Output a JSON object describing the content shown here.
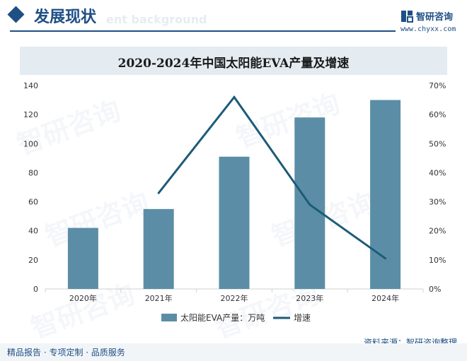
{
  "header": {
    "section_title": "发展现状",
    "ghost_text": "ent background",
    "brand_name": "智研咨询",
    "brand_url": "www.chyxx.com",
    "watermark": "智研咨询"
  },
  "footer": {
    "left": "精品报告 · 专项定制 · 品质服务",
    "source": "资料来源：智研咨询整理"
  },
  "colors": {
    "primary": "#1e4f85",
    "bar": "#5b8ea6",
    "line": "#1c5b78",
    "title_bg": "#e4ebf1"
  },
  "chart_data": {
    "type": "bar",
    "title": "2020-2024年中国太阳能EVA产量及增速",
    "categories": [
      "2020年",
      "2021年",
      "2022年",
      "2023年",
      "2024年"
    ],
    "series": [
      {
        "name": "太阳能EVA产量：万吨",
        "type": "bar",
        "axis": "left",
        "values": [
          42,
          55,
          91,
          118,
          130
        ]
      },
      {
        "name": "增速",
        "type": "line",
        "axis": "right",
        "values": [
          null,
          33,
          66,
          29,
          10.5
        ]
      }
    ],
    "ylim_left": [
      0,
      140
    ],
    "yticks_left": [
      "0",
      "20",
      "40",
      "60",
      "80",
      "100",
      "120",
      "140"
    ],
    "ylim_right": [
      0,
      70
    ],
    "yticks_right": [
      "0%",
      "10%",
      "20%",
      "30%",
      "40%",
      "50%",
      "60%",
      "70%"
    ],
    "grid": false,
    "legend": "bottom"
  }
}
